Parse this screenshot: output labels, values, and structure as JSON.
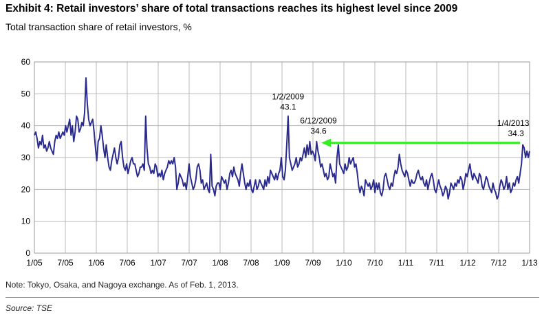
{
  "header": {
    "title": "Exhibit 4: Retail investors’ share of total transactions reaches its highest level since 2009",
    "subtitle": "Total transaction share of retail investors, %"
  },
  "footer": {
    "note": "Note: Tokyo, Osaka, and Nagoya exchange. As of Feb. 1, 2013.",
    "source": "Source: TSE"
  },
  "colors": {
    "series": "#2b2b8f",
    "arrow": "#33ee22",
    "grid": "#b8b8b8"
  },
  "chart_data": {
    "type": "line",
    "title": "Exhibit 4: Retail investors’ share of total transactions reaches its highest level since 2009",
    "subtitle": "Total transaction share of retail investors, %",
    "xlabel": "",
    "ylabel": "",
    "ylim": [
      0,
      60
    ],
    "yticks": [
      0,
      10,
      20,
      30,
      40,
      50,
      60
    ],
    "x_ticks": [
      "1/05",
      "7/05",
      "1/06",
      "7/06",
      "1/07",
      "7/07",
      "1/08",
      "7/08",
      "1/09",
      "7/09",
      "1/10",
      "7/10",
      "1/11",
      "7/11",
      "1/12",
      "7/12",
      "1/13"
    ],
    "grid": true,
    "series": [
      {
        "values": [
          37,
          38,
          36,
          33,
          35,
          34,
          37,
          33,
          34,
          32,
          33,
          35,
          33,
          32,
          31,
          35,
          37,
          36,
          38,
          36,
          37,
          38,
          37,
          40,
          38,
          40,
          42,
          37,
          40,
          35,
          38,
          43,
          42,
          38,
          39,
          41,
          40,
          44,
          55,
          47,
          42,
          40,
          41,
          42,
          38,
          33,
          29,
          35,
          36,
          40,
          37,
          33,
          30,
          34,
          30,
          27,
          26,
          29,
          31,
          33,
          30,
          28,
          30,
          34,
          35,
          30,
          27,
          26,
          28,
          25,
          27,
          29,
          30,
          28,
          28,
          26,
          24,
          25,
          27,
          27,
          28,
          26,
          43,
          33,
          28,
          27,
          25,
          26,
          25,
          28,
          27,
          24,
          25,
          24,
          26,
          23,
          25,
          26,
          27,
          29,
          28,
          29,
          28,
          30,
          27,
          20,
          22,
          25,
          24,
          23,
          21,
          22,
          20,
          24,
          28,
          24,
          22,
          20,
          21,
          23,
          27,
          28,
          26,
          22,
          23,
          20,
          21,
          22,
          20,
          19,
          31,
          21,
          20,
          18,
          21,
          22,
          22,
          20,
          24,
          23,
          22,
          23,
          20,
          22,
          25,
          26,
          24,
          27,
          25,
          24,
          23,
          21,
          25,
          28,
          25,
          22,
          20,
          22,
          21,
          23,
          20,
          19,
          21,
          23,
          20,
          21,
          23,
          22,
          21,
          20,
          23,
          21,
          24,
          22,
          26,
          25,
          24,
          23,
          25,
          23,
          25,
          26,
          30,
          24,
          23,
          26,
          34,
          43,
          30,
          28,
          26,
          27,
          28,
          30,
          27,
          28,
          30,
          29,
          31,
          33,
          30,
          34,
          31,
          35,
          31,
          32,
          31,
          29,
          35,
          32,
          30,
          27,
          28,
          26,
          24,
          25,
          23,
          24,
          28,
          26,
          24,
          25,
          22,
          30,
          34,
          28,
          27,
          26,
          25,
          28,
          26,
          27,
          30,
          28,
          29,
          30,
          27,
          28,
          25,
          21,
          19,
          21,
          20,
          18,
          23,
          22,
          21,
          22,
          20,
          21,
          23,
          19,
          22,
          20,
          22,
          19,
          18,
          20,
          24,
          25,
          23,
          21,
          20,
          22,
          21,
          24,
          26,
          25,
          27,
          31,
          28,
          26,
          25,
          24,
          26,
          25,
          23,
          21,
          23,
          22,
          22,
          23,
          25,
          26,
          24,
          23,
          24,
          22,
          21,
          23,
          20,
          22,
          24,
          25,
          23,
          20,
          19,
          21,
          23,
          21,
          20,
          18,
          19,
          21,
          20,
          17,
          19,
          22,
          21,
          20,
          22,
          21,
          23,
          22,
          24,
          23,
          20,
          22,
          25,
          24,
          26,
          28,
          25,
          23,
          25,
          24,
          23,
          22,
          25,
          24,
          21,
          20,
          22,
          24,
          23,
          21,
          20,
          19,
          22,
          20,
          19,
          17,
          18,
          21,
          23,
          22,
          20,
          21,
          24,
          20,
          22,
          19,
          20,
          22,
          21,
          23,
          24,
          22,
          25,
          28,
          34,
          33,
          30,
          32,
          30,
          32
        ]
      }
    ],
    "annotations": [
      {
        "date_label": "1/2/2009",
        "value_label": "43.1",
        "value": 43.1
      },
      {
        "date_label": "6/12/2009",
        "value_label": "34.6",
        "value": 34.6
      },
      {
        "date_label": "1/4/2013",
        "value_label": "34.3",
        "value": 34.3
      }
    ]
  }
}
